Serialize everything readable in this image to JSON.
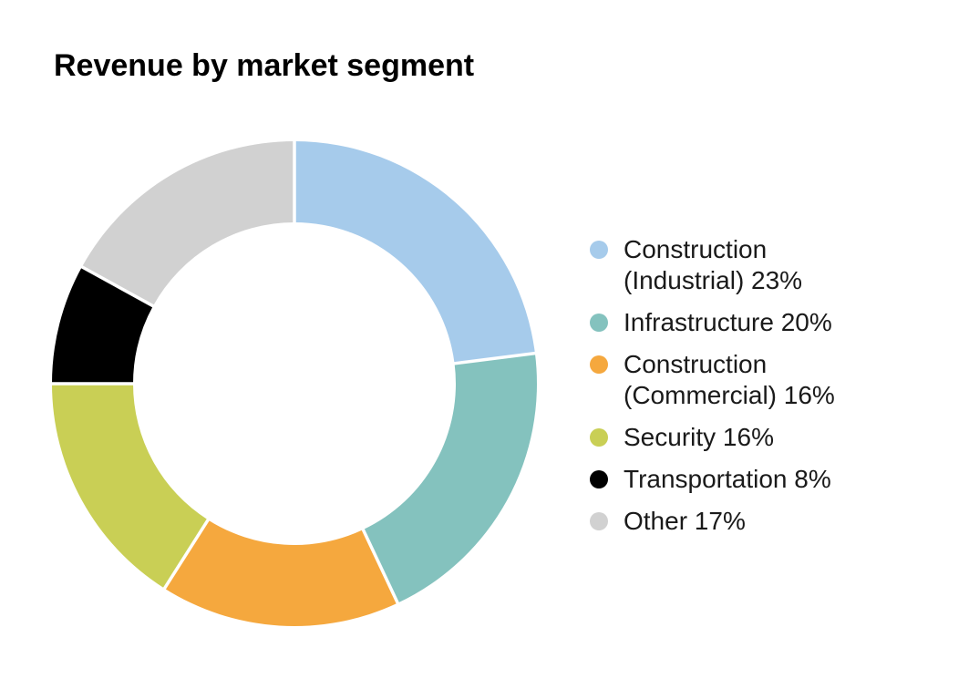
{
  "title": "Revenue by market segment",
  "chart_data": {
    "type": "pie",
    "subtype": "donut",
    "title": "Revenue by market segment",
    "categories": [
      "Construction (Industrial)",
      "Infrastructure",
      "Construction (Commercial)",
      "Security",
      "Transportation",
      "Other"
    ],
    "values": [
      23,
      20,
      16,
      16,
      8,
      17
    ],
    "unit": "%",
    "colors": [
      "#A6CBEB",
      "#84C2BE",
      "#F5A83E",
      "#C9CF55",
      "#000000",
      "#D1D1D1"
    ],
    "start_angle_deg": 0,
    "direction": "clockwise",
    "inner_radius_ratio": 0.665,
    "slice_gap_color": "#FFFFFF",
    "legend_position": "right"
  },
  "legend": {
    "items": [
      {
        "label_lines": [
          "Construction",
          "(Industrial) 23%"
        ],
        "color": "#A6CBEB",
        "name": "construction-industrial"
      },
      {
        "label_lines": [
          "Infrastructure 20%"
        ],
        "color": "#84C2BE",
        "name": "infrastructure"
      },
      {
        "label_lines": [
          "Construction",
          "(Commercial) 16%"
        ],
        "color": "#F5A83E",
        "name": "construction-commercial"
      },
      {
        "label_lines": [
          "Security 16%"
        ],
        "color": "#C9CF55",
        "name": "security"
      },
      {
        "label_lines": [
          "Transportation 8%"
        ],
        "color": "#000000",
        "name": "transportation"
      },
      {
        "label_lines": [
          "Other 17%"
        ],
        "color": "#D1D1D1",
        "name": "other"
      }
    ]
  }
}
